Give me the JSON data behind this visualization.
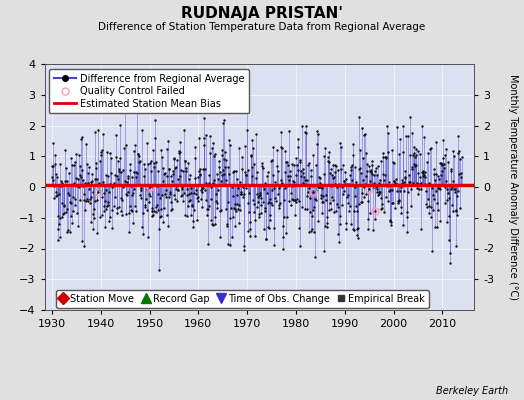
{
  "title": "RUDNAJA PRISTAN'",
  "subtitle": "Difference of Station Temperature Data from Regional Average",
  "ylabel": "Monthly Temperature Anomaly Difference (°C)",
  "xlabel_bottom": "Berkeley Earth",
  "xlim": [
    1928.5,
    2016.5
  ],
  "ylim": [
    -4,
    4
  ],
  "yticks_left": [
    -4,
    -3,
    -2,
    -1,
    0,
    1,
    2,
    3,
    4
  ],
  "yticks_right": [
    -3,
    -2,
    -1,
    0,
    1,
    2,
    3
  ],
  "xticks": [
    1930,
    1940,
    1950,
    1960,
    1970,
    1980,
    1990,
    2000,
    2010
  ],
  "bias_value": 0.05,
  "data_start_year": 1930,
  "data_end_year": 2014,
  "seed": 42,
  "line_color": "#4444cc",
  "line_alpha": 0.6,
  "dot_color": "#111111",
  "dot_size": 3,
  "bias_color": "#dd0000",
  "bias_linewidth": 2.5,
  "background_color": "#e0e0e0",
  "plot_bg_color": "#dce0f0",
  "grid_color": "#ffffff",
  "qc_color": "#ff99bb",
  "legend1_items": [
    "Difference from Regional Average",
    "Quality Control Failed",
    "Estimated Station Mean Bias"
  ],
  "legend2_items": [
    "Station Move",
    "Record Gap",
    "Time of Obs. Change",
    "Empirical Break"
  ],
  "legend2_colors": [
    "#cc0000",
    "#007700",
    "#3333cc",
    "#333333"
  ],
  "legend2_markers": [
    "D",
    "^",
    "v",
    "s"
  ],
  "legend2_markersizes": [
    6,
    7,
    7,
    5
  ]
}
